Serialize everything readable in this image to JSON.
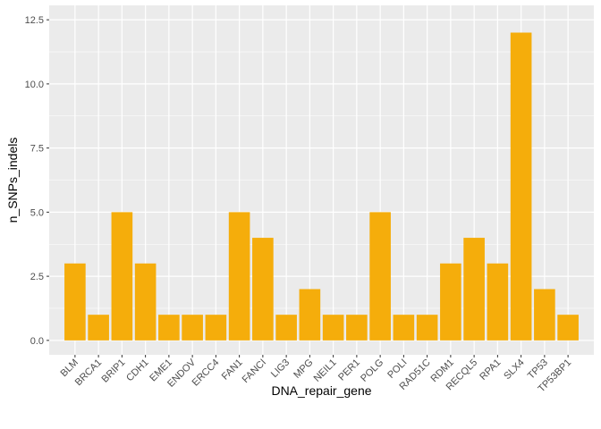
{
  "chart_data": {
    "type": "bar",
    "xlabel": "DNA_repair_gene",
    "ylabel": "n_SNPs_indels",
    "categories": [
      "BLM",
      "BRCA1",
      "BRIP1",
      "CDH1",
      "EME1",
      "ENDOV",
      "ERCC4",
      "FAN1",
      "FANCI",
      "LIG3",
      "MPG",
      "NEIL1",
      "PER1",
      "POLG",
      "POLI",
      "RAD51C",
      "RDM1",
      "RECQL5",
      "RPA1",
      "SLX4",
      "TP53",
      "TP53BP1"
    ],
    "values": [
      3,
      1,
      5,
      3,
      1,
      1,
      1,
      5,
      4,
      1,
      2,
      1,
      1,
      5,
      1,
      1,
      3,
      4,
      3,
      12,
      2,
      1
    ],
    "ylim": [
      0,
      12.5
    ],
    "yticks": [
      0,
      2.5,
      5,
      7.5,
      10,
      12.5
    ],
    "ytick_labels": [
      "0.0",
      "2.5",
      "5.0",
      "7.5",
      "10.0",
      "12.5"
    ],
    "grid": true,
    "bar_color": "#F5AD0B",
    "panel_background": "#EBEBEB",
    "grid_color": "#FFFFFF"
  }
}
